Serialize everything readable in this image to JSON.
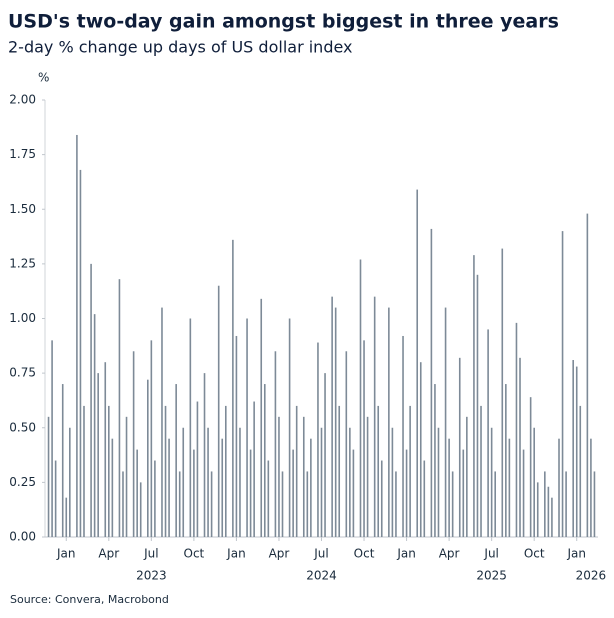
{
  "chart_data": {
    "type": "bar",
    "title": "USD's two-day gain amongst biggest in three years",
    "subtitle": "2-day % change up days of US dollar index",
    "y_unit": "%",
    "source": "Source: Convera, Macrobond",
    "color": "#7d8a97",
    "ylim": [
      0,
      2
    ],
    "yticks": [
      {
        "value": 0,
        "label": "0.00"
      },
      {
        "value": 0.25,
        "label": "0.25"
      },
      {
        "value": 0.5,
        "label": "0.50"
      },
      {
        "value": 0.75,
        "label": "0.75"
      },
      {
        "value": 1,
        "label": "1.00"
      },
      {
        "value": 1.25,
        "label": "1.25"
      },
      {
        "value": 1.5,
        "label": "1.50"
      },
      {
        "value": 1.75,
        "label": "1.75"
      },
      {
        "value": 2,
        "label": "2.00"
      }
    ],
    "xlim": [
      "2022-12",
      "2026-03"
    ],
    "xticks": [
      {
        "value": "2023-01",
        "label": "Jan"
      },
      {
        "value": "2023-04",
        "label": "Apr"
      },
      {
        "value": "2023-07",
        "label": "Jul"
      },
      {
        "value": "2023-10",
        "label": "Oct"
      },
      {
        "value": "2024-01",
        "label": "Jan"
      },
      {
        "value": "2024-04",
        "label": "Apr"
      },
      {
        "value": "2024-07",
        "label": "Jul"
      },
      {
        "value": "2024-10",
        "label": "Oct"
      },
      {
        "value": "2025-01",
        "label": "Jan"
      },
      {
        "value": "2025-04",
        "label": "Apr"
      },
      {
        "value": "2025-07",
        "label": "Jul"
      },
      {
        "value": "2025-10",
        "label": "Oct"
      },
      {
        "value": "2026-01",
        "label": "Jan"
      }
    ],
    "year_ticks": [
      {
        "value": "2023-07",
        "label": "2023"
      },
      {
        "value": "2024-07",
        "label": "2024"
      },
      {
        "value": "2025-07",
        "label": "2025"
      },
      {
        "value": "2026-02",
        "label": "2026"
      }
    ],
    "x": [
      "2022-12",
      "2022-12",
      "2022-12",
      "2023-01",
      "2023-01",
      "2023-01",
      "2023-02",
      "2023-02",
      "2023-02",
      "2023-03",
      "2023-03",
      "2023-03",
      "2023-04",
      "2023-04",
      "2023-04",
      "2023-05",
      "2023-05",
      "2023-05",
      "2023-06",
      "2023-06",
      "2023-06",
      "2023-07",
      "2023-07",
      "2023-07",
      "2023-08",
      "2023-08",
      "2023-08",
      "2023-09",
      "2023-09",
      "2023-09",
      "2023-10",
      "2023-10",
      "2023-10",
      "2023-11",
      "2023-11",
      "2023-11",
      "2023-12",
      "2023-12",
      "2023-12",
      "2024-01",
      "2024-01",
      "2024-01",
      "2024-02",
      "2024-02",
      "2024-02",
      "2024-03",
      "2024-03",
      "2024-03",
      "2024-04",
      "2024-04",
      "2024-04",
      "2024-05",
      "2024-05",
      "2024-05",
      "2024-06",
      "2024-06",
      "2024-06",
      "2024-07",
      "2024-07",
      "2024-07",
      "2024-08",
      "2024-08",
      "2024-08",
      "2024-09",
      "2024-09",
      "2024-09",
      "2024-10",
      "2024-10",
      "2024-10",
      "2024-11",
      "2024-11",
      "2024-11",
      "2024-12",
      "2024-12",
      "2024-12",
      "2025-01",
      "2025-01",
      "2025-01",
      "2025-02",
      "2025-02",
      "2025-02",
      "2025-03",
      "2025-03",
      "2025-03",
      "2025-04",
      "2025-04",
      "2025-04",
      "2025-05",
      "2025-05",
      "2025-05",
      "2025-06",
      "2025-06",
      "2025-06",
      "2025-07",
      "2025-07",
      "2025-07",
      "2025-08",
      "2025-08",
      "2025-08",
      "2025-09",
      "2025-09",
      "2025-09",
      "2025-10",
      "2025-10",
      "2025-10",
      "2025-11",
      "2025-11",
      "2025-11",
      "2025-12",
      "2025-12",
      "2025-12",
      "2026-01",
      "2026-01",
      "2026-01",
      "2026-02",
      "2026-02",
      "2026-02"
    ],
    "values": [
      0.55,
      0.9,
      0.35,
      0.7,
      0.18,
      0.5,
      1.84,
      1.68,
      0.6,
      1.25,
      1.02,
      0.75,
      0.8,
      0.6,
      0.45,
      1.18,
      0.3,
      0.55,
      0.85,
      0.4,
      0.25,
      0.72,
      0.9,
      0.35,
      1.05,
      0.6,
      0.45,
      0.7,
      0.3,
      0.5,
      1.0,
      0.4,
      0.62,
      0.75,
      0.5,
      0.3,
      1.15,
      0.45,
      0.6,
      1.36,
      0.92,
      0.5,
      1.0,
      0.4,
      0.62,
      1.09,
      0.7,
      0.35,
      0.85,
      0.55,
      0.3,
      1.0,
      0.4,
      0.6,
      0.55,
      0.3,
      0.45,
      0.89,
      0.5,
      0.75,
      1.1,
      1.05,
      0.6,
      0.85,
      0.5,
      0.4,
      1.27,
      0.9,
      0.55,
      1.1,
      0.6,
      0.35,
      1.05,
      0.5,
      0.3,
      0.92,
      0.4,
      0.6,
      1.59,
      0.8,
      0.35,
      1.41,
      0.7,
      0.5,
      1.05,
      0.45,
      0.3,
      0.82,
      0.4,
      0.55,
      1.29,
      1.2,
      0.6,
      0.95,
      0.5,
      0.3,
      1.32,
      0.7,
      0.45,
      0.98,
      0.82,
      0.4,
      0.64,
      0.5,
      0.25,
      0.3,
      0.23,
      0.18,
      0.45,
      1.4,
      0.3,
      0.81,
      0.78,
      0.6,
      1.48,
      0.45,
      0.3
    ]
  }
}
